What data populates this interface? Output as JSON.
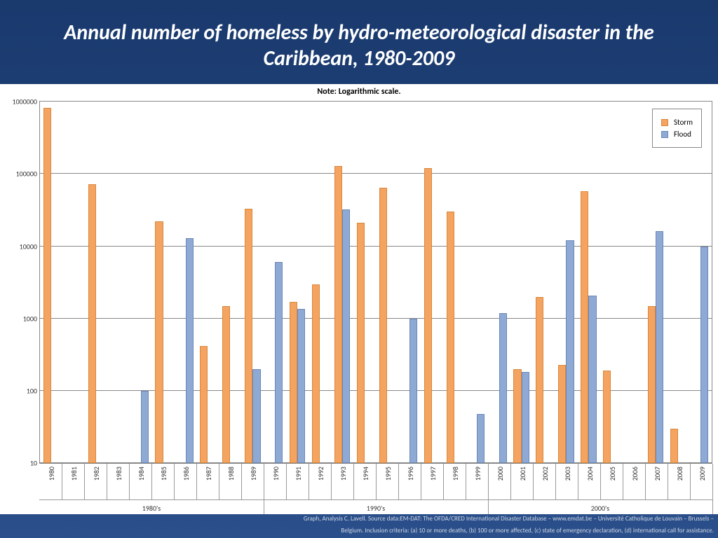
{
  "title": "Annual number of homeless by hydro-meteorological disaster in the Caribbean,  1980-2009",
  "title_fontsize": 30,
  "note": "Note: Logarithmic scale.",
  "note_fontsize": 12,
  "chart": {
    "type": "bar",
    "scale": "log",
    "ylim_min": 10,
    "ylim_max": 1000000,
    "y_ticks": [
      10,
      100,
      1000,
      10000,
      100000,
      1000000
    ],
    "y_tick_fontsize": 10,
    "x_tick_fontsize": 10,
    "background_color": "#ffffff",
    "grid_color": "#888888",
    "legend_fontsize": 11,
    "legend_border_color": "#888888",
    "bar_group_gap_pct": 30,
    "series": [
      {
        "name": "Storm",
        "color": "#f4a460",
        "border": "#d9873a"
      },
      {
        "name": "Flood",
        "color": "#8ea9d4",
        "border": "#6a88b8"
      }
    ],
    "decades": [
      {
        "label": "1980's",
        "start": 1980,
        "end": 1989
      },
      {
        "label": "1990's",
        "start": 1990,
        "end": 1999
      },
      {
        "label": "2000's",
        "start": 2000,
        "end": 2009
      }
    ],
    "years": [
      1980,
      1981,
      1982,
      1983,
      1984,
      1985,
      1986,
      1987,
      1988,
      1989,
      1990,
      1991,
      1992,
      1993,
      1994,
      1995,
      1996,
      1997,
      1998,
      1999,
      2000,
      2001,
      2002,
      2003,
      2004,
      2005,
      2006,
      2007,
      2008,
      2009
    ],
    "data": {
      "Storm": {
        "1980": 820000,
        "1982": 72000,
        "1985": 22000,
        "1987": 420,
        "1988": 1500,
        "1989": 33000,
        "1991": 1700,
        "1992": 3000,
        "1993": 130000,
        "1994": 21000,
        "1995": 65000,
        "1997": 120000,
        "1998": 30000,
        "2001": 200,
        "2002": 2000,
        "2003": 230,
        "2004": 58000,
        "2005": 190,
        "2007": 1500,
        "2008": 30
      },
      "Flood": {
        "1984": 100,
        "1986": 13000,
        "1989": 200,
        "1990": 6000,
        "1991": 1350,
        "1993": 32000,
        "1996": 1000,
        "1999": 48,
        "2000": 1200,
        "2001": 185,
        "2003": 12000,
        "2004": 2100,
        "2007": 16000,
        "2009": 10000
      }
    }
  },
  "source_line1": "Graph, Analysis C. Lavell. Source data:EM-DAT: The OFDA/CRED International Disaster Database – www.emdat.be – Université Catholique de Louvain – Brussels –",
  "source_line2": "Belgium. Inclusion criteria: (a) 10 or more deaths, (b) 100 or more affected, (c) state of emergency declaration, (d) international call for assistance.",
  "source_fontsize": 9
}
